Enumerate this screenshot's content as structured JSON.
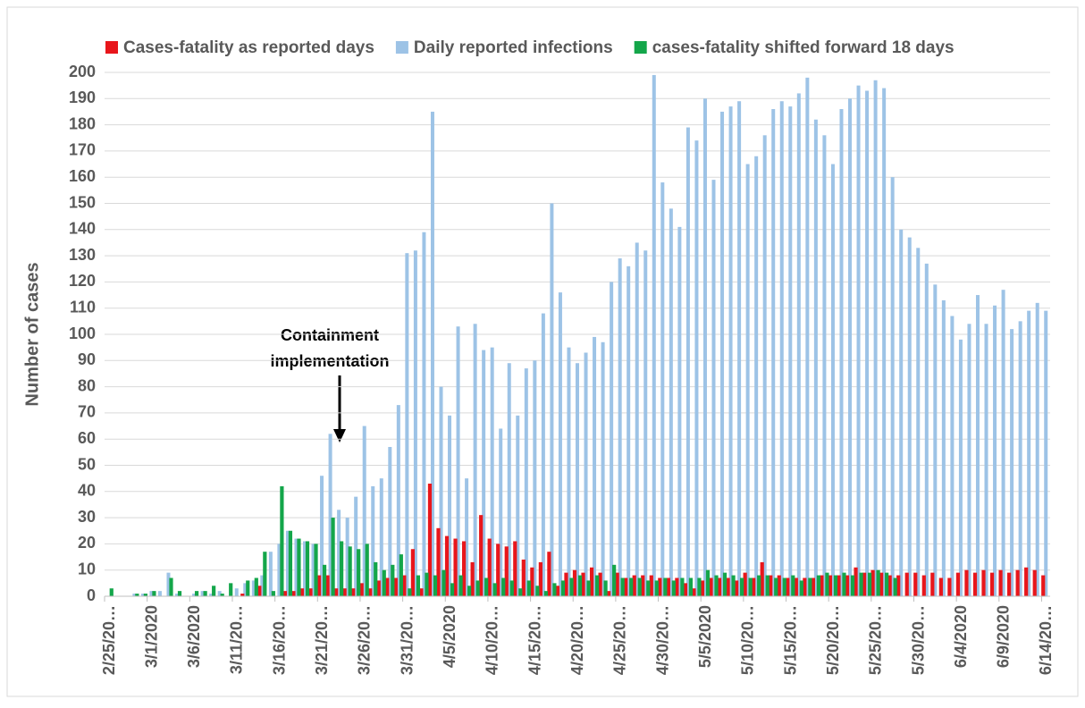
{
  "chart_data": {
    "type": "bar",
    "y_label": "Number of cases",
    "annotation": [
      "Containment",
      "implementation"
    ],
    "categories": [
      "2/25/20…",
      null,
      null,
      null,
      null,
      "3/1/2020",
      null,
      null,
      null,
      null,
      "3/6/2020",
      null,
      null,
      null,
      null,
      "3/11/20…",
      null,
      null,
      null,
      null,
      "3/16/20…",
      null,
      null,
      null,
      null,
      "3/21/20…",
      null,
      null,
      null,
      null,
      "3/26/20…",
      null,
      null,
      null,
      null,
      "3/31/20…",
      null,
      null,
      null,
      null,
      "4/5/2020",
      null,
      null,
      null,
      null,
      "4/10/20…",
      null,
      null,
      null,
      null,
      "4/15/20…",
      null,
      null,
      null,
      null,
      "4/20/20…",
      null,
      null,
      null,
      null,
      "4/25/20…",
      null,
      null,
      null,
      null,
      "4/30/20…",
      null,
      null,
      null,
      null,
      "5/5/2020",
      null,
      null,
      null,
      null,
      "5/10/20…",
      null,
      null,
      null,
      null,
      "5/15/20…",
      null,
      null,
      null,
      null,
      "5/20/20…",
      null,
      null,
      null,
      null,
      "5/25/20…",
      null,
      null,
      null,
      null,
      "5/30/20…",
      null,
      null,
      null,
      null,
      "6/4/2020",
      null,
      null,
      null,
      null,
      "6/9/2020",
      null,
      null,
      null,
      null,
      "6/14/20…"
    ],
    "series": [
      {
        "name": "Daily reported infections",
        "color": "#9dc3e6",
        "values": [
          0,
          0,
          0,
          1,
          1,
          2,
          2,
          9,
          1,
          0,
          1,
          2,
          1,
          2,
          0,
          3,
          5,
          6,
          8,
          17,
          20,
          25,
          22,
          21,
          20,
          46,
          62,
          33,
          30,
          38,
          65,
          42,
          45,
          57,
          73,
          131,
          132,
          139,
          185,
          80,
          69,
          103,
          45,
          104,
          94,
          95,
          64,
          89,
          69,
          87,
          90,
          108,
          150,
          116,
          95,
          89,
          93,
          99,
          97,
          120,
          129,
          126,
          135,
          132,
          199,
          158,
          148,
          141,
          179,
          174,
          190,
          159,
          185,
          187,
          189,
          165,
          168,
          176,
          186,
          189,
          187,
          192,
          198,
          182,
          176,
          165,
          186,
          190,
          195,
          193,
          197,
          194,
          160,
          140,
          137,
          133,
          127,
          119,
          113,
          107,
          98,
          104,
          115,
          104,
          111,
          117,
          102,
          105,
          109,
          112,
          109
        ]
      },
      {
        "name": "Cases-fatality as reported days",
        "color": "#e8161b",
        "values": [
          0,
          0,
          0,
          0,
          0,
          0,
          0,
          0,
          0,
          0,
          0,
          0,
          0,
          0,
          0,
          0,
          1,
          0,
          4,
          0,
          0,
          2,
          2,
          3,
          3,
          8,
          8,
          3,
          3,
          3,
          5,
          3,
          6,
          7,
          7,
          8,
          18,
          3,
          43,
          26,
          23,
          22,
          21,
          13,
          31,
          22,
          20,
          19,
          21,
          14,
          11,
          13,
          17,
          4,
          9,
          10,
          9,
          11,
          9,
          2,
          9,
          7,
          8,
          8,
          8,
          7,
          7,
          7,
          5,
          3,
          6,
          7,
          7,
          7,
          6,
          9,
          7,
          13,
          8,
          8,
          7,
          7,
          7,
          7,
          8,
          8,
          8,
          8,
          11,
          9,
          10,
          9,
          8,
          8,
          9,
          9,
          8,
          9,
          7,
          7,
          9,
          10,
          9,
          10,
          9,
          10,
          9,
          10,
          11,
          10,
          8
        ]
      },
      {
        "name": "cases-fatality shifted forward 18 days",
        "color": "#14a64a",
        "values": [
          3,
          0,
          0,
          1,
          1,
          2,
          0,
          7,
          2,
          0,
          2,
          2,
          4,
          1,
          5,
          0,
          6,
          7,
          17,
          2,
          42,
          25,
          22,
          21,
          20,
          12,
          30,
          21,
          19,
          18,
          20,
          13,
          10,
          12,
          16,
          3,
          8,
          9,
          8,
          10,
          5,
          8,
          4,
          6,
          7,
          5,
          7,
          6,
          3,
          6,
          4,
          2,
          5,
          6,
          7,
          8,
          6,
          8,
          6,
          12,
          7,
          7,
          7,
          6,
          6,
          7,
          6,
          7,
          7,
          7,
          10,
          8,
          9,
          8,
          7,
          7,
          8,
          8,
          7,
          7,
          8,
          6,
          7,
          8,
          9,
          8,
          9,
          8,
          9,
          9,
          10,
          9,
          7,
          null,
          null,
          null,
          null,
          null,
          null,
          null,
          null,
          null,
          null,
          null,
          null,
          null,
          null,
          null,
          null,
          null,
          null
        ]
      }
    ],
    "legend_order": [
      1,
      0,
      2
    ],
    "ylim": [
      0,
      200
    ],
    "yticks": [
      0,
      10,
      20,
      30,
      40,
      50,
      60,
      70,
      80,
      90,
      100,
      110,
      120,
      130,
      140,
      150,
      160,
      170,
      180,
      190,
      200
    ],
    "grid": true
  }
}
